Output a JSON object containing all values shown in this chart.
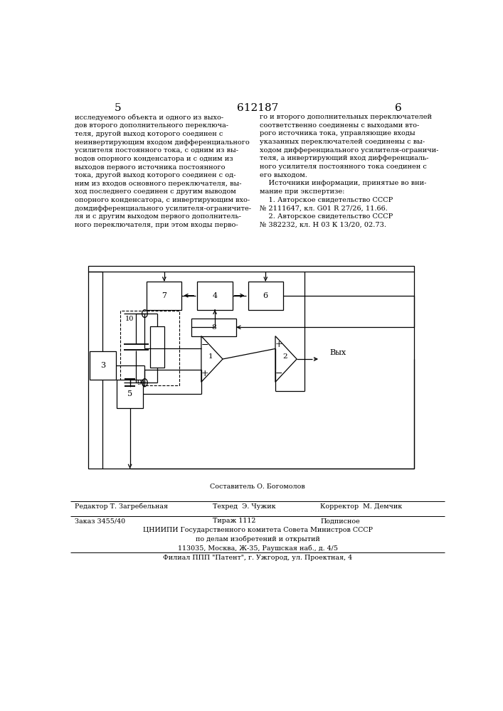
{
  "page_number_left": "5",
  "page_number_center": "612187",
  "page_number_right": "6",
  "text_left": "исследуемого объекта и одного из выхо-\nдов второго дополнительного переключа-\nтеля, другой выход которого соединен с\nнеинвертирующим входом дифференциального\nусилителя постоянного тока, с одним из вы-\nводов опорного конденсатора и с одним из\nвыходов первого источника постоянного\nтока, другой выход которого соединен с од-\nним из входов основного переключателя, вы-\nход последнего соединен с другим выводом\nопорного конденсатора, с инвертирующим вхо-\nдомдифференциального усилителя-ограничите-\nля и с другим выходом первого дополнитель-\nного переключателя, при этом входы перво-",
  "text_right": "го и второго дополнительных переключателей\nсоответственно соединены с выходами вто-\nрого источника тока, управляющие входы\nуказанных переключателей соединены с вы-\nходом дифференциального усилителя-ограничи-\nтеля, а инвертирующий вход дифференциаль-\nного усилителя постоянного тока соединен с\nего выходом.\n    Источники информации, принятые во вни-\nмание при экспертизе:\n    1. Авторское свидетельство СССР\n№ 2111647, кл. G01 R 27/26, 11.66.\n    2. Авторское свидетельство СССР\n№ 382232, кл. Н 03 К 13/20, 02.73.",
  "footer_compiler": "Составитель О. Богомолов",
  "footer_editor": "Редактор Т. Загребельная",
  "footer_tech": "Техред  Э. Чужик",
  "footer_corrector": "Корректор  М. Демчик",
  "footer_order": "Заказ 3455/40",
  "footer_print": "Тираж 1112",
  "footer_subscription": "Подписное",
  "footer_org1": "ЦНИИПИ Государственного комитета Совета Министров СССР",
  "footer_org2": "по делам изобретений и открытий",
  "footer_address": "113035, Москва, Ж-35, Раушская наб., д. 4/5",
  "footer_branch": "Филиал ППП \"Патент\", г. Ужгород, ул. Проектная, 4",
  "bg_color": "#ffffff"
}
